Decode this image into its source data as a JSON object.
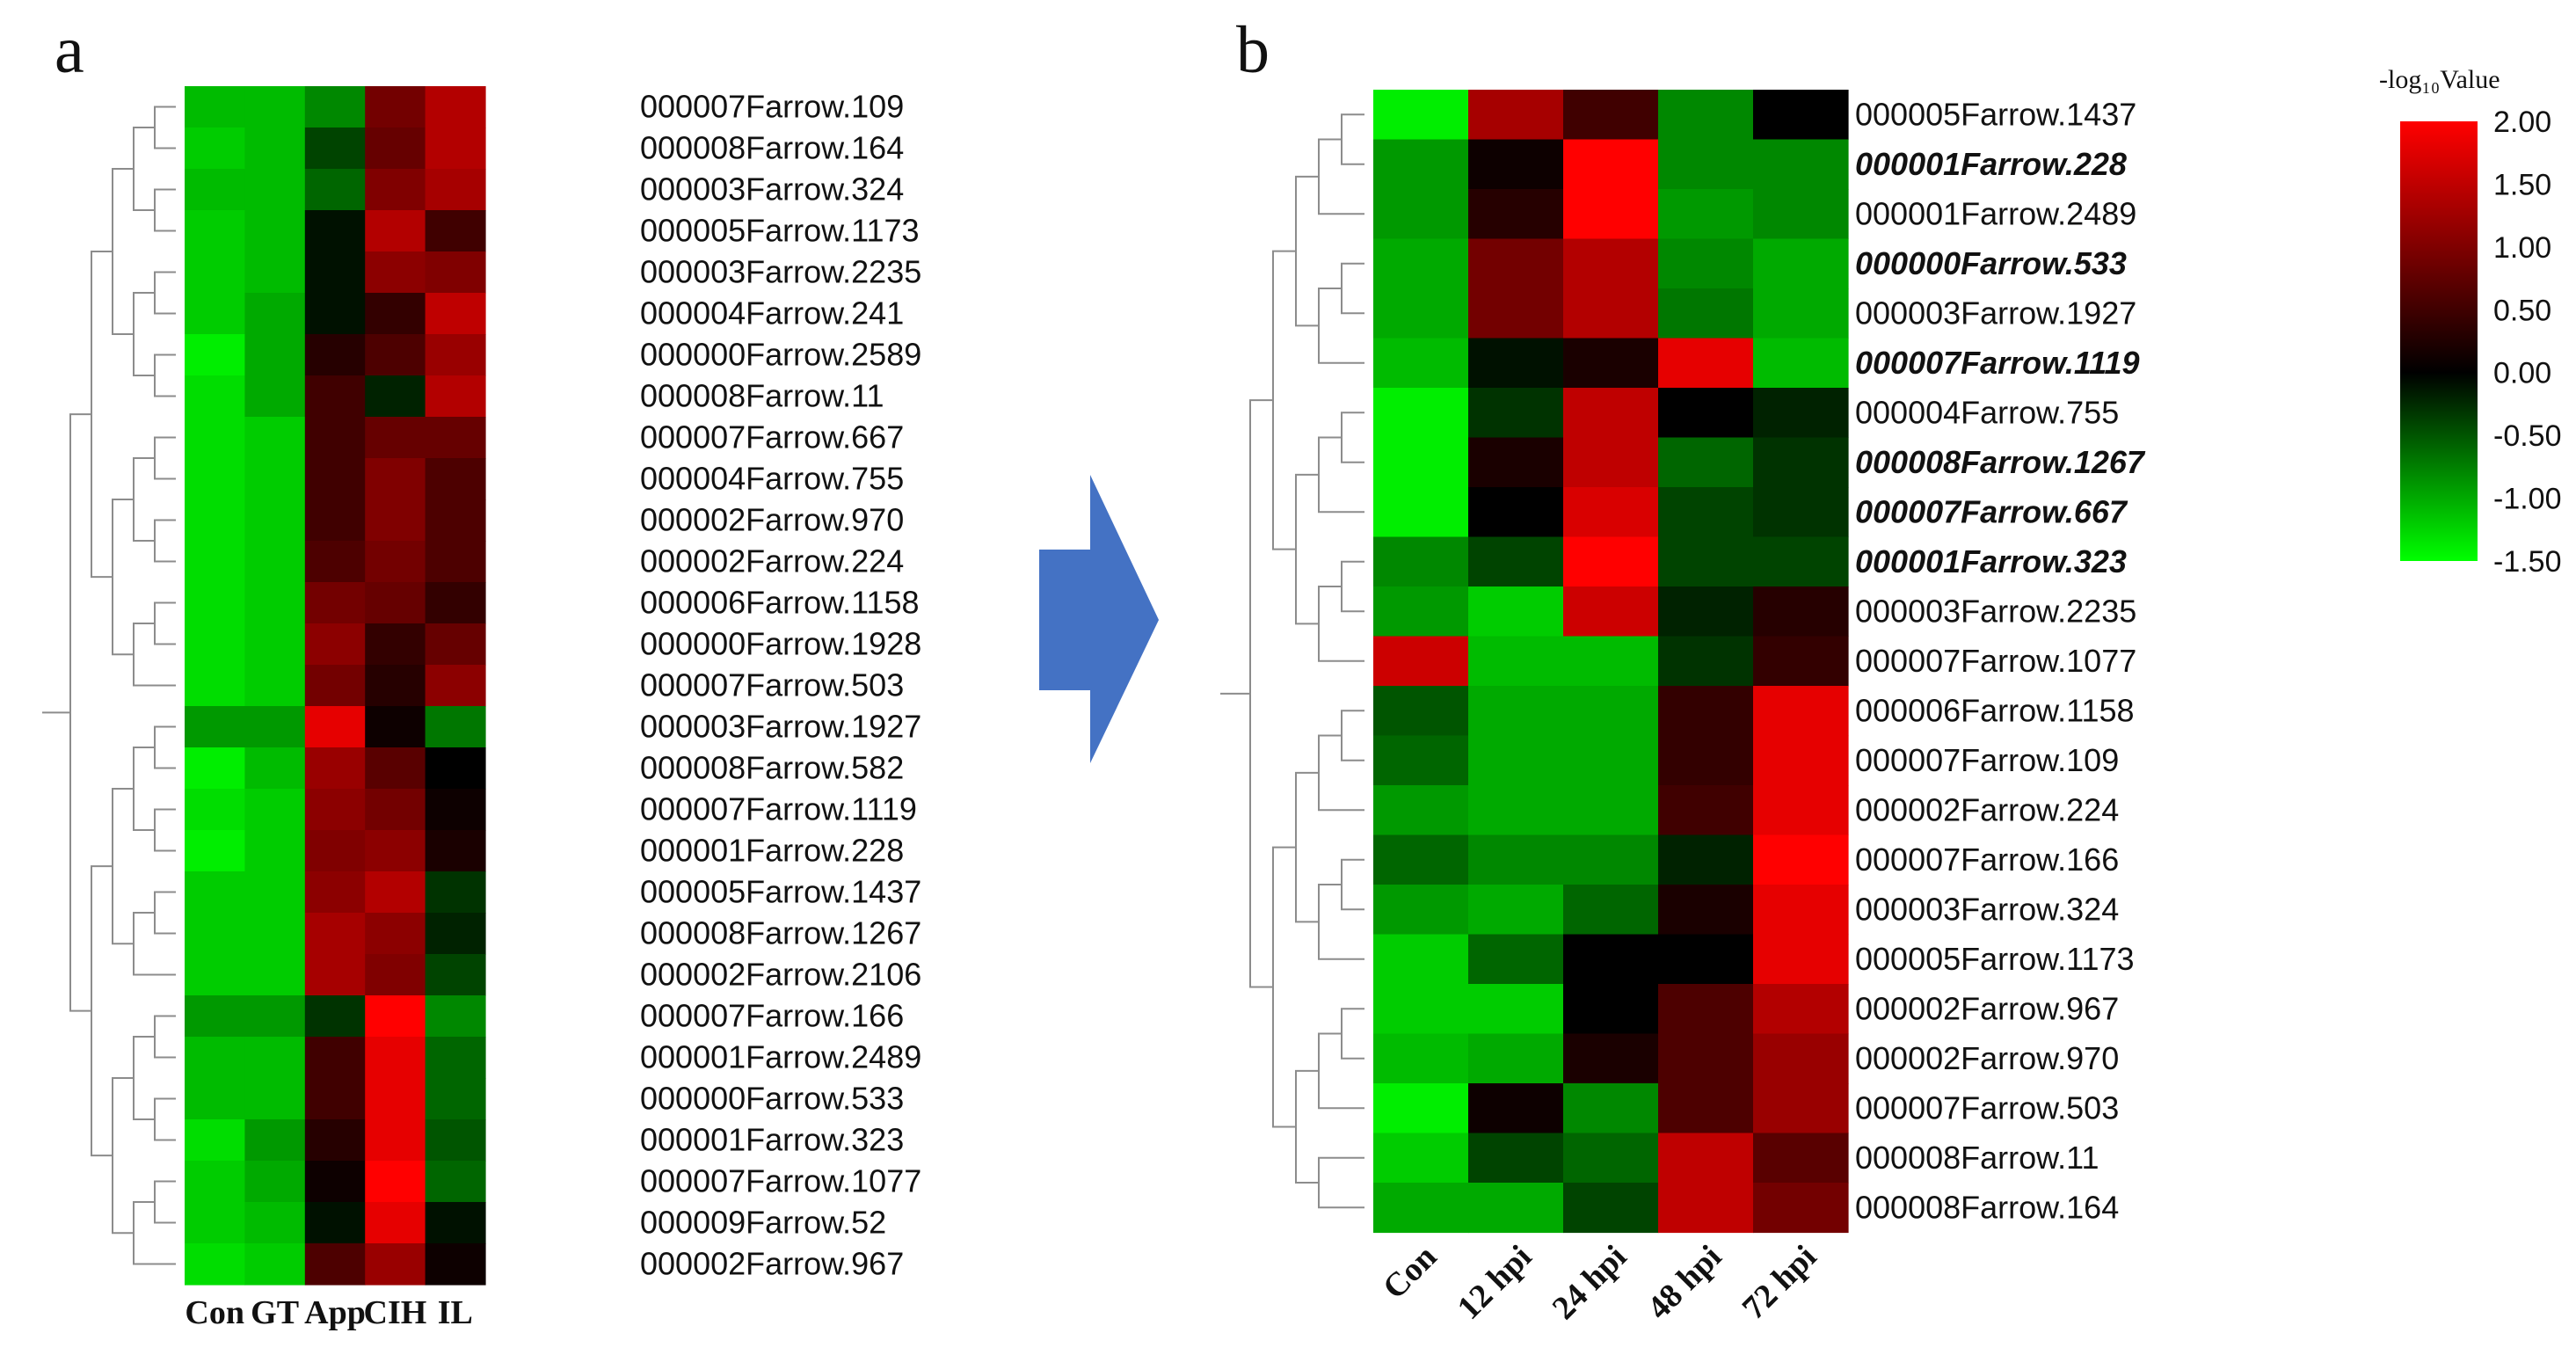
{
  "figure": {
    "arrow_color": "#4472c4"
  },
  "legend": {
    "title": "-log₁₀Value",
    "ticks": [
      "2.00",
      "1.50",
      "1.00",
      "0.50",
      "0.00",
      "-0.50",
      "-1.00",
      "-1.50"
    ],
    "tick_values": [
      2.0,
      1.5,
      1.0,
      0.5,
      0.0,
      -0.5,
      -1.0,
      -1.5
    ],
    "color_stops": [
      {
        "value": -1.5,
        "color": "#00ff00"
      },
      {
        "value": 0.0,
        "color": "#000000"
      },
      {
        "value": 2.0,
        "color": "#ff0000"
      }
    ]
  },
  "chart_data": [
    {
      "type": "heatmap",
      "panel": "a",
      "columns": [
        "Con",
        "GT",
        "App",
        "CIH",
        "IL"
      ],
      "rows": [
        "000007Farrow.109",
        "000008Farrow.164",
        "000003Farrow.324",
        "000005Farrow.1173",
        "000003Farrow.2235",
        "000004Farrow.241",
        "000000Farrow.2589",
        "000008Farrow.11",
        "000007Farrow.667",
        "000004Farrow.755",
        "000002Farrow.970",
        "000002Farrow.224",
        "000006Farrow.1158",
        "000000Farrow.1928",
        "000007Farrow.503",
        "000003Farrow.1927",
        "000008Farrow.582",
        "000007Farrow.1119",
        "000001Farrow.228",
        "000005Farrow.1437",
        "000008Farrow.1267",
        "000002Farrow.2106",
        "000007Farrow.166",
        "000001Farrow.2489",
        "000000Farrow.533",
        "000001Farrow.323",
        "000007Farrow.1077",
        "000009Farrow.52",
        "000002Farrow.967"
      ],
      "highlighted_rows": [],
      "values": [
        [
          -1.1,
          -1.1,
          -0.8,
          0.9,
          1.4
        ],
        [
          -1.2,
          -1.1,
          -0.4,
          0.8,
          1.4
        ],
        [
          -1.1,
          -1.1,
          -0.6,
          1.0,
          1.3
        ],
        [
          -1.2,
          -1.1,
          -0.1,
          1.4,
          0.5
        ],
        [
          -1.2,
          -1.1,
          -0.1,
          1.1,
          1.0
        ],
        [
          -1.2,
          -1.0,
          -0.1,
          0.4,
          1.5
        ],
        [
          -1.4,
          -1.0,
          0.3,
          0.6,
          1.2
        ],
        [
          -1.3,
          -1.0,
          0.5,
          -0.2,
          1.4
        ],
        [
          -1.3,
          -1.2,
          0.5,
          0.8,
          0.8
        ],
        [
          -1.3,
          -1.2,
          0.5,
          1.0,
          0.6
        ],
        [
          -1.3,
          -1.2,
          0.5,
          1.0,
          0.6
        ],
        [
          -1.3,
          -1.2,
          0.6,
          0.9,
          0.6
        ],
        [
          -1.3,
          -1.2,
          0.9,
          0.8,
          0.4
        ],
        [
          -1.3,
          -1.2,
          1.1,
          0.4,
          0.8
        ],
        [
          -1.3,
          -1.2,
          0.9,
          0.3,
          1.1
        ],
        [
          -0.9,
          -0.9,
          1.8,
          0.1,
          -0.7
        ],
        [
          -1.4,
          -1.1,
          1.2,
          0.7,
          0.0
        ],
        [
          -1.3,
          -1.2,
          1.1,
          0.9,
          0.1
        ],
        [
          -1.4,
          -1.2,
          1.0,
          1.1,
          0.2
        ],
        [
          -1.2,
          -1.2,
          1.1,
          1.4,
          -0.3
        ],
        [
          -1.2,
          -1.2,
          1.3,
          1.1,
          -0.2
        ],
        [
          -1.2,
          -1.2,
          1.3,
          1.0,
          -0.4
        ],
        [
          -0.9,
          -0.9,
          -0.3,
          2.0,
          -0.8
        ],
        [
          -1.1,
          -1.1,
          0.5,
          1.8,
          -0.6
        ],
        [
          -1.1,
          -1.1,
          0.5,
          1.8,
          -0.6
        ],
        [
          -1.3,
          -0.9,
          0.3,
          1.8,
          -0.5
        ],
        [
          -1.2,
          -1.0,
          0.1,
          2.0,
          -0.6
        ],
        [
          -1.2,
          -1.1,
          -0.1,
          1.8,
          -0.1
        ],
        [
          -1.3,
          -1.2,
          0.6,
          1.2,
          0.1
        ]
      ],
      "colorbar_range": [
        -1.5,
        2.0
      ]
    },
    {
      "type": "heatmap",
      "panel": "b",
      "columns": [
        "Con",
        "12 hpi",
        "24 hpi",
        "48 hpi",
        "72 hpi"
      ],
      "rows": [
        "000005Farrow.1437",
        "000001Farrow.228",
        "000001Farrow.2489",
        "000000Farrow.533",
        "000003Farrow.1927",
        "000007Farrow.1119",
        "000004Farrow.755",
        "000008Farrow.1267",
        "000007Farrow.667",
        "000001Farrow.323",
        "000003Farrow.2235",
        "000007Farrow.1077",
        "000006Farrow.1158",
        "000007Farrow.109",
        "000002Farrow.224",
        "000007Farrow.166",
        "000003Farrow.324",
        "000005Farrow.1173",
        "000002Farrow.967",
        "000002Farrow.970",
        "000007Farrow.503",
        "000008Farrow.11",
        "000008Farrow.164"
      ],
      "highlighted_rows": [
        "000001Farrow.228",
        "000000Farrow.533",
        "000007Farrow.1119",
        "000008Farrow.1267",
        "000007Farrow.667",
        "000001Farrow.323"
      ],
      "values": [
        [
          -1.4,
          1.3,
          0.5,
          -0.8,
          0.0
        ],
        [
          -0.9,
          0.1,
          2.0,
          -0.8,
          -0.8
        ],
        [
          -0.9,
          0.3,
          2.0,
          -0.9,
          -0.8
        ],
        [
          -1.0,
          0.9,
          1.4,
          -0.8,
          -1.0
        ],
        [
          -1.0,
          0.9,
          1.4,
          -0.7,
          -1.0
        ],
        [
          -1.1,
          -0.1,
          0.2,
          1.8,
          -1.1
        ],
        [
          -1.4,
          -0.3,
          1.5,
          0.0,
          -0.2
        ],
        [
          -1.4,
          0.2,
          1.5,
          -0.6,
          -0.3
        ],
        [
          -1.4,
          0.0,
          1.7,
          -0.4,
          -0.3
        ],
        [
          -0.8,
          -0.4,
          2.0,
          -0.4,
          -0.4
        ],
        [
          -0.9,
          -1.2,
          1.6,
          -0.2,
          0.3
        ],
        [
          1.6,
          -1.1,
          -1.1,
          -0.3,
          0.4
        ],
        [
          -0.5,
          -1.0,
          -1.0,
          0.4,
          1.8
        ],
        [
          -0.6,
          -1.0,
          -1.0,
          0.4,
          1.8
        ],
        [
          -0.9,
          -1.0,
          -1.0,
          0.5,
          1.8
        ],
        [
          -0.6,
          -0.8,
          -0.8,
          -0.2,
          2.0
        ],
        [
          -0.9,
          -1.0,
          -0.6,
          0.2,
          1.8
        ],
        [
          -1.2,
          -0.6,
          0.0,
          0.0,
          1.8
        ],
        [
          -1.2,
          -1.2,
          0.0,
          0.6,
          1.4
        ],
        [
          -1.1,
          -1.0,
          0.2,
          0.6,
          1.2
        ],
        [
          -1.4,
          0.1,
          -0.8,
          0.6,
          1.2
        ],
        [
          -1.2,
          -0.4,
          -0.6,
          1.5,
          0.7
        ],
        [
          -1.0,
          -1.0,
          -0.4,
          1.5,
          0.9
        ]
      ],
      "colorbar_range": [
        -1.5,
        2.0
      ]
    }
  ]
}
